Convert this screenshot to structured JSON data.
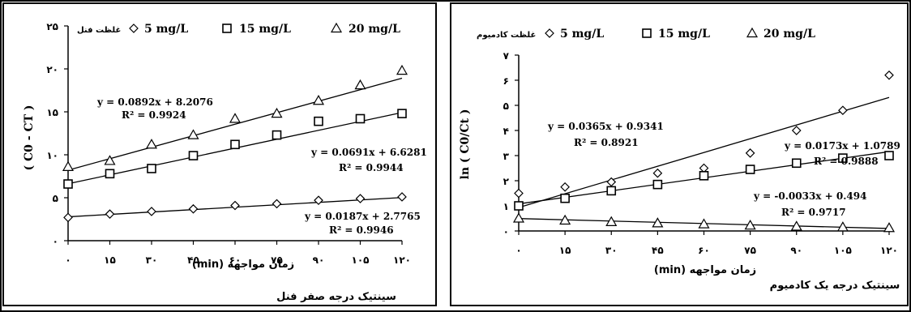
{
  "chart_data": [
    {
      "type": "scatter",
      "subtitle": "سینتیک درجه صفر فنل",
      "xlabel": "زمان مواجهه (min)",
      "ylabel": "( C0 - CT )",
      "x": [
        0,
        15,
        30,
        45,
        60,
        75,
        90,
        105,
        120
      ],
      "x_ticks": [
        "۰",
        "۱۵",
        "۳۰",
        "۴۵",
        "۶۰",
        "۷۵",
        "۹۰",
        "۱۰۵",
        "۱۲۰"
      ],
      "xlim": [
        0,
        120
      ],
      "ylim": [
        0,
        25
      ],
      "y_ticks": [
        {
          "value": 0,
          "label": "۰"
        },
        {
          "value": 5,
          "label": "۵"
        },
        {
          "value": 10,
          "label": "۱۰"
        },
        {
          "value": 15,
          "label": "۱۵"
        },
        {
          "value": 20,
          "label": "۲۰"
        },
        {
          "value": 25,
          "label": "۲۵"
        }
      ],
      "legend_title": "غلظت فنل",
      "legend_position": "top",
      "series": [
        {
          "name": "5 mg/L",
          "marker": "diamond",
          "values": [
            2.7,
            3.1,
            3.4,
            3.7,
            4.1,
            4.3,
            4.7,
            4.9,
            5.1
          ],
          "fit": {
            "slope": 0.0187,
            "intercept": 2.7765
          },
          "equation": "y = 0.0187x + 2.7765",
          "r2": "R² = 0.9946"
        },
        {
          "name": "15 mg/L",
          "marker": "square",
          "values": [
            6.6,
            7.8,
            8.4,
            9.9,
            11.2,
            12.3,
            13.9,
            14.2,
            14.8
          ],
          "fit": {
            "slope": 0.0691,
            "intercept": 6.6281
          },
          "equation": "y = 0.0691x + 6.6281",
          "r2": "R² = 0.9944"
        },
        {
          "name": "20 mg/L",
          "marker": "triangle",
          "values": [
            8.6,
            9.3,
            11.2,
            12.3,
            14.2,
            14.8,
            16.3,
            18.1,
            19.8
          ],
          "fit": {
            "slope": 0.0892,
            "intercept": 8.2076
          },
          "equation": "y = 0.0892x + 8.2076",
          "r2": "R² = 0.9924"
        }
      ]
    },
    {
      "type": "scatter",
      "subtitle": "سینتیک درجه یک کادمیوم",
      "xlabel": "زمان مواجهه (min)",
      "ylabel": "ln ( C0/Ct )",
      "x": [
        0,
        15,
        30,
        45,
        60,
        75,
        90,
        105,
        120
      ],
      "x_ticks": [
        "۰",
        "۱۵",
        "۳۰",
        "۴۵",
        "۶۰",
        "۷۵",
        "۹۰",
        "۱۰۵",
        "۱۲۰"
      ],
      "xlim": [
        0,
        120
      ],
      "ylim": [
        0,
        7
      ],
      "y_ticks": [
        {
          "value": 0,
          "label": "۰"
        },
        {
          "value": 1,
          "label": "۱"
        },
        {
          "value": 2,
          "label": "۲"
        },
        {
          "value": 3,
          "label": "۳"
        },
        {
          "value": 4,
          "label": "۴"
        },
        {
          "value": 5,
          "label": "۵"
        },
        {
          "value": 6,
          "label": "۶"
        },
        {
          "value": 7,
          "label": "۷"
        }
      ],
      "legend_title": "غلظت کادمیوم",
      "legend_position": "top",
      "series": [
        {
          "name": "5 mg/L",
          "marker": "diamond",
          "values": [
            1.5,
            1.75,
            1.95,
            2.3,
            2.5,
            3.1,
            4.0,
            4.8,
            6.2
          ],
          "fit": {
            "slope": 0.0365,
            "intercept": 0.9341
          },
          "equation": "y = 0.0365x + 0.9341",
          "r2": "R² = 0.8921"
        },
        {
          "name": "15 mg/L",
          "marker": "square",
          "values": [
            1.0,
            1.3,
            1.6,
            1.85,
            2.2,
            2.45,
            2.7,
            2.9,
            3.0
          ],
          "fit": {
            "slope": 0.0173,
            "intercept": 1.0789
          },
          "equation": "y = 0.0173x + 1.0789",
          "r2": "R² = 0.9888"
        },
        {
          "name": "20 mg/L",
          "marker": "triangle",
          "values": [
            0.5,
            0.42,
            0.36,
            0.31,
            0.27,
            0.22,
            0.18,
            0.15,
            0.12
          ],
          "fit": {
            "slope": -0.0033,
            "intercept": 0.494
          },
          "equation": "y = -0.0033x + 0.494",
          "r2": "R² = 0.9717"
        }
      ]
    }
  ]
}
